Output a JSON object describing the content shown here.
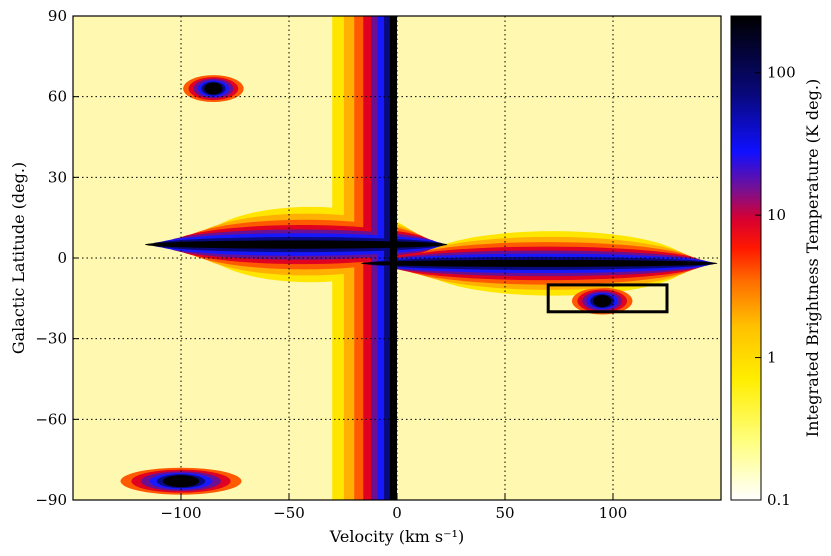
{
  "chart_data": {
    "type": "heatmap",
    "title": "",
    "xlabel": "Velocity (km s⁻¹)",
    "ylabel": "Galactic Latitude (deg.)",
    "colorbar_label": "Integrated Brightness Temperature (K deg.)",
    "xlim": [
      -150,
      150
    ],
    "ylim": [
      -90,
      90
    ],
    "xticks": [
      -100,
      -50,
      0,
      50,
      100
    ],
    "xtick_labels": [
      "−100",
      "−50",
      "0",
      "50",
      "100"
    ],
    "yticks": [
      -90,
      -60,
      -30,
      0,
      30,
      60,
      90
    ],
    "ytick_labels": [
      "−90",
      "−60",
      "−30",
      "0",
      "30",
      "60",
      "90"
    ],
    "colorbar": {
      "scale": "log",
      "range": [
        0.1,
        250
      ],
      "ticks": [
        0.1,
        1,
        10,
        100
      ],
      "tick_labels": [
        "0.1",
        "1",
        "10",
        "100"
      ]
    },
    "grid": true,
    "contours": true,
    "features": [
      {
        "kind": "vertical ridge",
        "velocity": 0,
        "latitude": [
          -90,
          90
        ]
      },
      {
        "kind": "horizontal ridge",
        "latitude": 5,
        "velocity": [
          -90,
          10
        ]
      },
      {
        "kind": "horizontal ridge",
        "latitude": -2,
        "velocity": [
          10,
          135
        ]
      },
      {
        "kind": "cloud",
        "velocity": -100,
        "latitude": -83
      },
      {
        "kind": "cloud",
        "velocity": -85,
        "latitude": 63
      },
      {
        "kind": "cloud",
        "velocity": 95,
        "latitude": -16
      }
    ],
    "box": {
      "velocity": [
        70,
        125
      ],
      "latitude": [
        -20,
        -10
      ]
    }
  }
}
